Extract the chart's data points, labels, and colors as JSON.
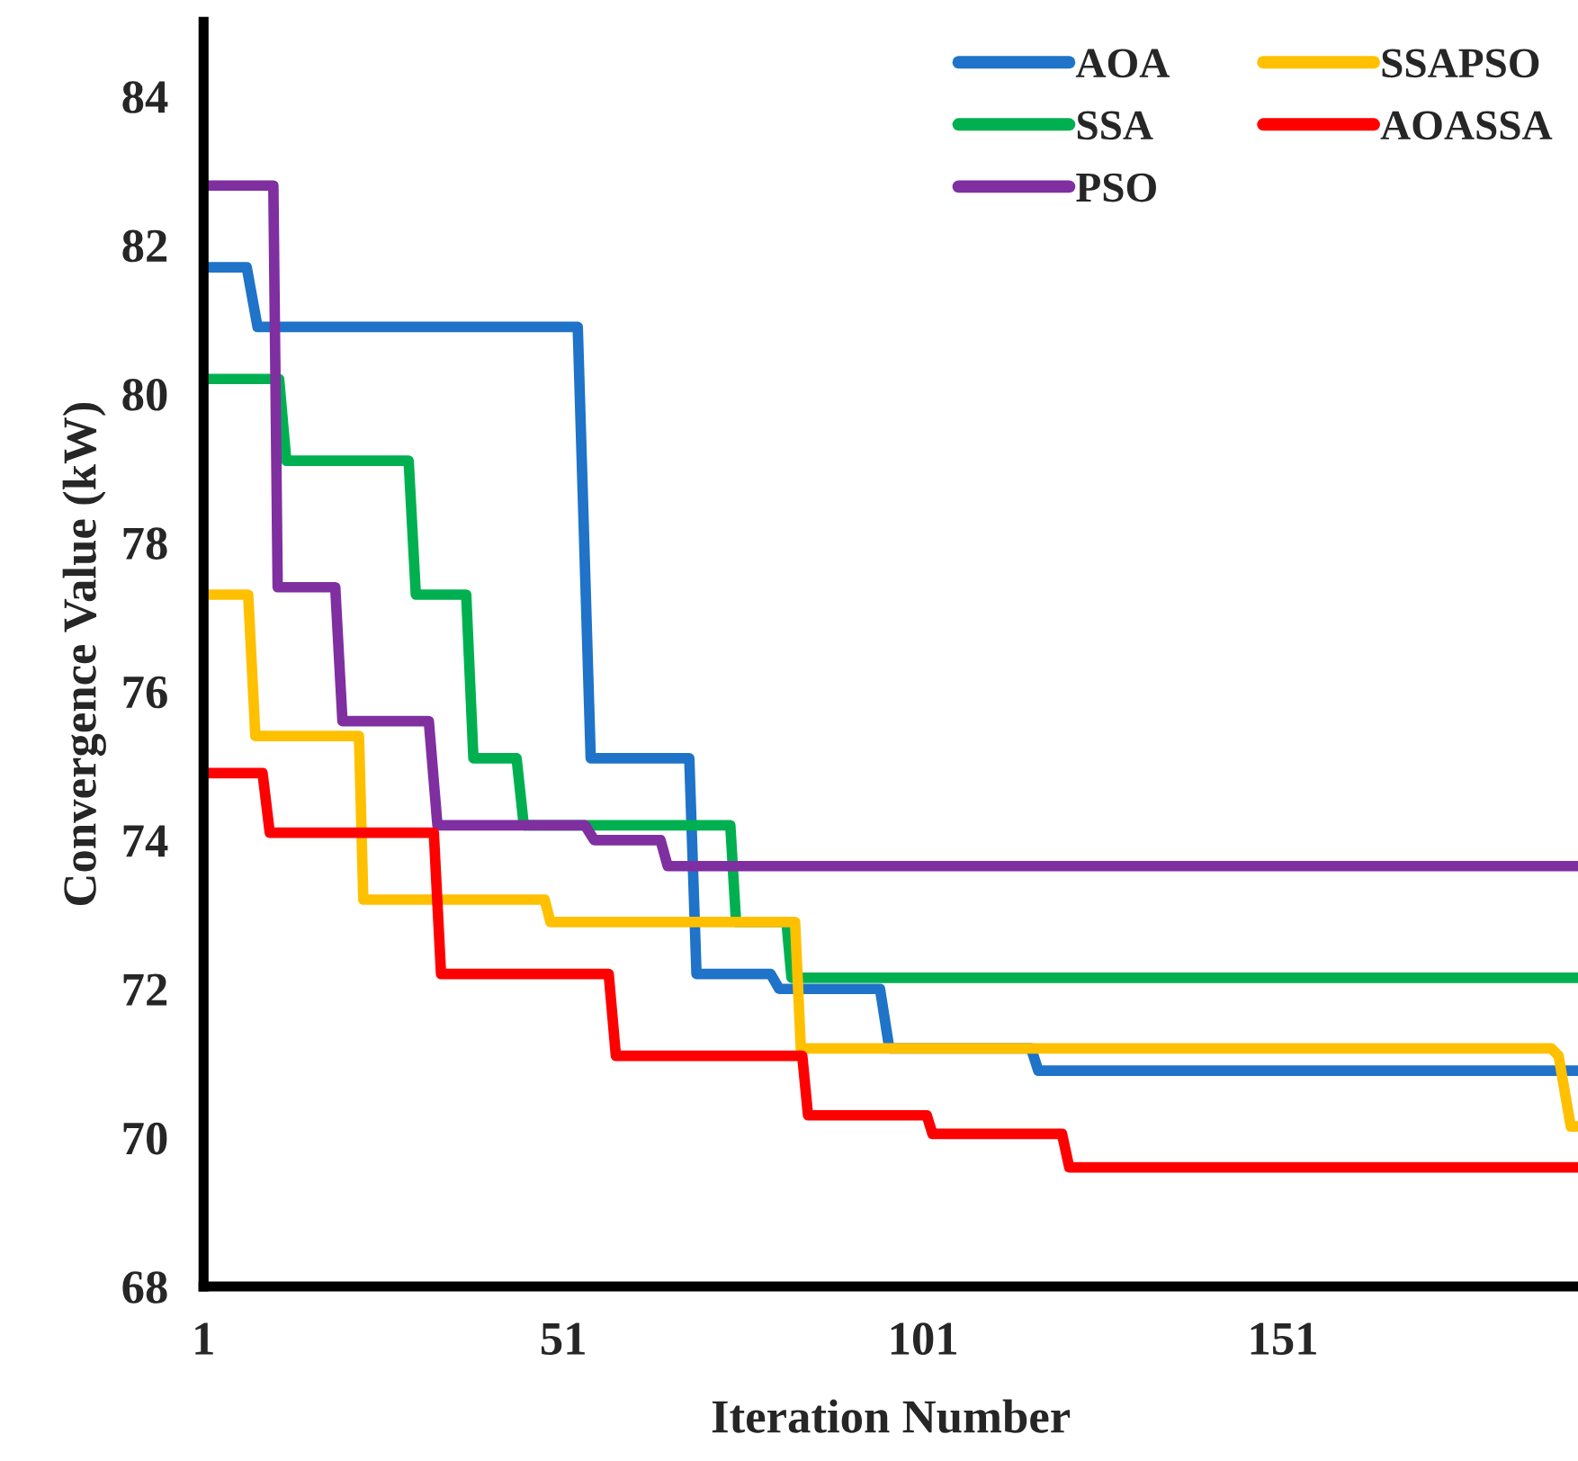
{
  "chart_data": {
    "type": "line",
    "xlabel": "Iteration Number",
    "ylabel": "Convergence Value (kW)",
    "xlim": [
      1,
      192
    ],
    "xticks": [
      1,
      51,
      101,
      151
    ],
    "ylim": [
      68,
      85
    ],
    "yticks": [
      68,
      70,
      72,
      74,
      76,
      78,
      80,
      82,
      84
    ],
    "grid": false,
    "legend": "top right",
    "marker": "none",
    "line_style": "solid",
    "series": [
      {
        "name": "AOA",
        "color": "#1f73c8",
        "x": [
          1,
          7,
          8.5,
          53,
          54.8,
          68.5,
          69.5,
          79.8,
          81,
          95,
          96.3,
          116,
          117,
          192
        ],
        "values": [
          81.7,
          81.7,
          80.9,
          80.9,
          75.1,
          75.1,
          72.2,
          72.2,
          72.0,
          72.0,
          71.2,
          71.2,
          70.9,
          70.9
        ]
      },
      {
        "name": "SSA",
        "color": "#00b050",
        "x": [
          1,
          11.5,
          12.5,
          29.5,
          30.5,
          37.5,
          38.5,
          44.5,
          45.5,
          74.2,
          75,
          82,
          82.7,
          192
        ],
        "values": [
          80.2,
          80.2,
          79.1,
          79.1,
          77.3,
          77.3,
          75.1,
          75.1,
          74.2,
          74.2,
          72.9,
          72.9,
          72.15,
          72.15
        ]
      },
      {
        "name": "PSO",
        "color": "#7f2fa0",
        "x": [
          1,
          10.7,
          11.3,
          19.3,
          20.3,
          32.3,
          33.5,
          54,
          55.3,
          64.5,
          65.5,
          192
        ],
        "values": [
          82.8,
          82.8,
          77.4,
          77.4,
          75.6,
          75.6,
          74.2,
          74.2,
          74.0,
          74.0,
          73.65,
          73.65
        ]
      },
      {
        "name": "SSAPSO",
        "color": "#ffc000",
        "x": [
          1,
          7.2,
          8.2,
          22.6,
          23.2,
          48.4,
          49.2,
          83.2,
          84,
          188.3,
          189.3,
          191,
          192
        ],
        "values": [
          77.3,
          77.3,
          75.4,
          75.4,
          73.2,
          73.2,
          72.9,
          72.9,
          71.2,
          71.2,
          71.1,
          70.15,
          70.15
        ]
      },
      {
        "name": "AOASSA",
        "color": "#ff0000",
        "x": [
          1,
          9.2,
          10.2,
          33,
          34,
          57.3,
          58.3,
          84.2,
          85,
          101.5,
          102.3,
          120.3,
          121.3,
          192
        ],
        "values": [
          74.9,
          74.9,
          74.1,
          74.1,
          72.2,
          72.2,
          71.1,
          71.1,
          70.3,
          70.3,
          70.05,
          70.05,
          69.6,
          69.6
        ]
      }
    ]
  }
}
